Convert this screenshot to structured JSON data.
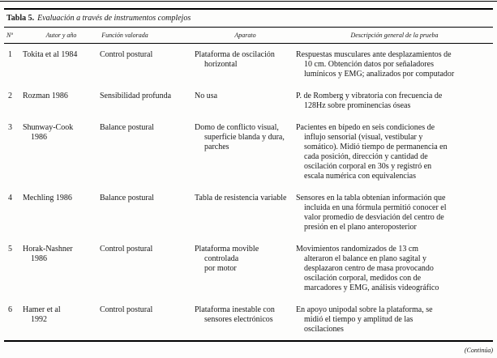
{
  "title": {
    "label": "Tabla 5.",
    "text": "Evaluación a través de instrumentos complejos"
  },
  "table": {
    "columns": [
      "Nº",
      "Autor y año",
      "Función valorada",
      "Aparato",
      "Descripción general de la prueba"
    ],
    "rows": [
      {
        "num": "1",
        "autor": "Tokita et al 1984",
        "funcion": "Control postural",
        "aparato": "Plataforma de oscilación\nhorizontal",
        "descripcion": "Respuestas musculares ante desplazamientos de\n10 cm. Obtención datos por señaladores\nlumínicos y EMG; analizados por computador"
      },
      {
        "num": "2",
        "autor": "Rozman 1986",
        "funcion": "Sensibilidad profunda",
        "aparato": "No usa",
        "descripcion": "P. de Romberg y vibratoria con frecuencia de\n128Hz sobre prominencias óseas"
      },
      {
        "num": "3",
        "autor": "Shunway-Cook\n1986",
        "funcion": "Balance postural",
        "aparato": "Domo de conflicto visual,\nsuperficie blanda y dura,\nparches",
        "descripcion": "Pacientes en bípedo en seis condiciones de\ninflujo sensorial (visual, vestibular y\nsomático). Midió tiempo de permanencia en\ncada posición, dirección y cantidad de\noscilación corporal en 30s y registró en\nescala numérica con equivalencias"
      },
      {
        "num": "4",
        "autor": "Mechling 1986",
        "funcion": "Balance postural",
        "aparato": "Tabla de resistencia variable",
        "descripcion": "Sensores en la tabla obtenían información que\nincluida en una fórmula permitió conocer el\nvalor promedio de desviación del centro de\npresión en el plano anteroposterior"
      },
      {
        "num": "5",
        "autor": "Horak-Nashner\n1986",
        "funcion": "Control postural",
        "aparato": "Plataforma movible controlada\npor motor",
        "descripcion": "Movimientos randomizados de 13 cm\nalteraron el balance en plano sagital y\ndesplazaron centro de masa provocando\noscilación corporal, medidos con de\nmarcadores y EMG, análisis videográfico"
      },
      {
        "num": "6",
        "autor": "Hamer et al\n1992",
        "funcion": "Control postural",
        "aparato": "Plataforma inestable con\nsensores electrónicos",
        "descripcion": "En apoyo unipodal sobre la plataforma, se\nmidió el tiempo y amplitud de las\noscilaciones"
      }
    ]
  },
  "footer": {
    "continua": "(Continúa)"
  }
}
